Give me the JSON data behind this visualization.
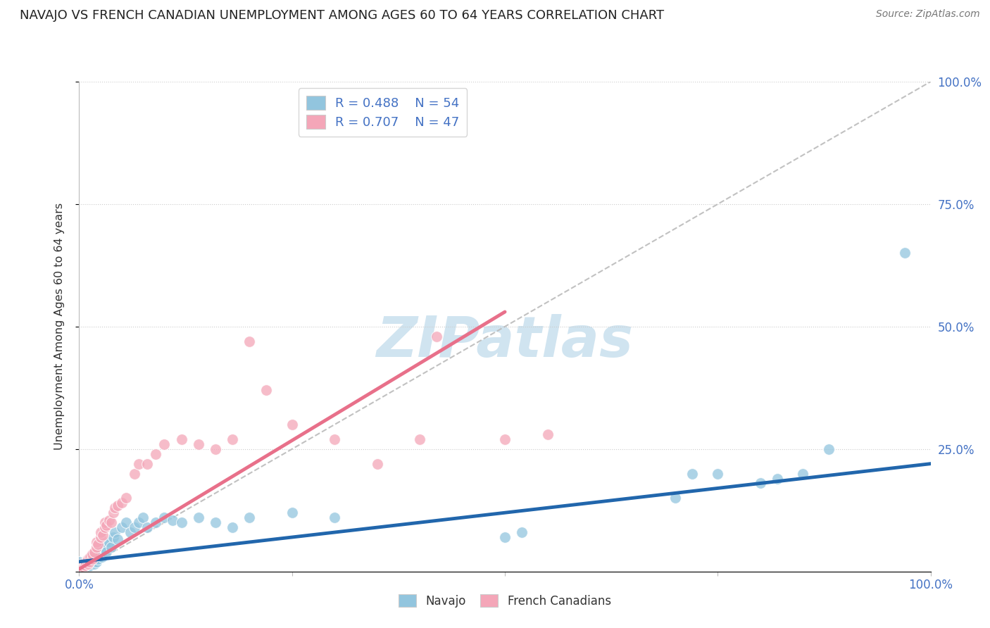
{
  "title": "NAVAJO VS FRENCH CANADIAN UNEMPLOYMENT AMONG AGES 60 TO 64 YEARS CORRELATION CHART",
  "source_text": "Source: ZipAtlas.com",
  "ylabel": "Unemployment Among Ages 60 to 64 years",
  "navajo_R": 0.488,
  "navajo_N": 54,
  "french_R": 0.707,
  "french_N": 47,
  "navajo_color": "#92c5de",
  "french_color": "#f4a6b8",
  "navajo_line_color": "#2166ac",
  "french_line_color": "#e8708a",
  "watermark_color": "#d0e4f0",
  "background_color": "#ffffff",
  "title_fontsize": 13,
  "navajo_x": [
    0.0,
    0.003,
    0.005,
    0.007,
    0.008,
    0.01,
    0.01,
    0.012,
    0.013,
    0.015,
    0.015,
    0.017,
    0.018,
    0.02,
    0.02,
    0.022,
    0.025,
    0.025,
    0.027,
    0.03,
    0.03,
    0.032,
    0.035,
    0.038,
    0.04,
    0.042,
    0.045,
    0.05,
    0.055,
    0.06,
    0.065,
    0.07,
    0.075,
    0.08,
    0.09,
    0.1,
    0.11,
    0.12,
    0.14,
    0.16,
    0.18,
    0.2,
    0.25,
    0.3,
    0.5,
    0.52,
    0.7,
    0.72,
    0.75,
    0.8,
    0.82,
    0.85,
    0.88,
    0.97
  ],
  "navajo_y": [
    0.02,
    0.01,
    0.005,
    0.015,
    0.008,
    0.01,
    0.02,
    0.015,
    0.012,
    0.018,
    0.025,
    0.02,
    0.015,
    0.03,
    0.02,
    0.025,
    0.035,
    0.04,
    0.03,
    0.045,
    0.055,
    0.04,
    0.06,
    0.05,
    0.07,
    0.08,
    0.065,
    0.09,
    0.1,
    0.08,
    0.09,
    0.1,
    0.11,
    0.09,
    0.1,
    0.11,
    0.105,
    0.1,
    0.11,
    0.1,
    0.09,
    0.11,
    0.12,
    0.11,
    0.07,
    0.08,
    0.15,
    0.2,
    0.2,
    0.18,
    0.19,
    0.2,
    0.25,
    0.65
  ],
  "french_x": [
    0.0,
    0.002,
    0.004,
    0.005,
    0.007,
    0.008,
    0.01,
    0.01,
    0.012,
    0.013,
    0.015,
    0.015,
    0.018,
    0.02,
    0.02,
    0.022,
    0.025,
    0.025,
    0.028,
    0.03,
    0.03,
    0.032,
    0.035,
    0.038,
    0.04,
    0.042,
    0.045,
    0.05,
    0.055,
    0.065,
    0.07,
    0.08,
    0.09,
    0.1,
    0.12,
    0.14,
    0.16,
    0.18,
    0.2,
    0.22,
    0.25,
    0.3,
    0.35,
    0.4,
    0.42,
    0.5,
    0.55
  ],
  "french_y": [
    0.01,
    0.005,
    0.015,
    0.01,
    0.012,
    0.018,
    0.015,
    0.025,
    0.02,
    0.03,
    0.025,
    0.035,
    0.04,
    0.05,
    0.06,
    0.055,
    0.07,
    0.08,
    0.075,
    0.09,
    0.1,
    0.095,
    0.105,
    0.1,
    0.12,
    0.13,
    0.135,
    0.14,
    0.15,
    0.2,
    0.22,
    0.22,
    0.24,
    0.26,
    0.27,
    0.26,
    0.25,
    0.27,
    0.47,
    0.37,
    0.3,
    0.27,
    0.22,
    0.27,
    0.48,
    0.27,
    0.28
  ],
  "navajo_trendline": [
    0.0,
    1.0,
    0.02,
    0.22
  ],
  "french_trendline": [
    0.0,
    0.5,
    0.005,
    0.53
  ],
  "xlim": [
    0.0,
    1.0
  ],
  "ylim": [
    0.0,
    1.0
  ],
  "grid_lines": [
    0.25,
    0.5,
    0.75,
    1.0
  ]
}
